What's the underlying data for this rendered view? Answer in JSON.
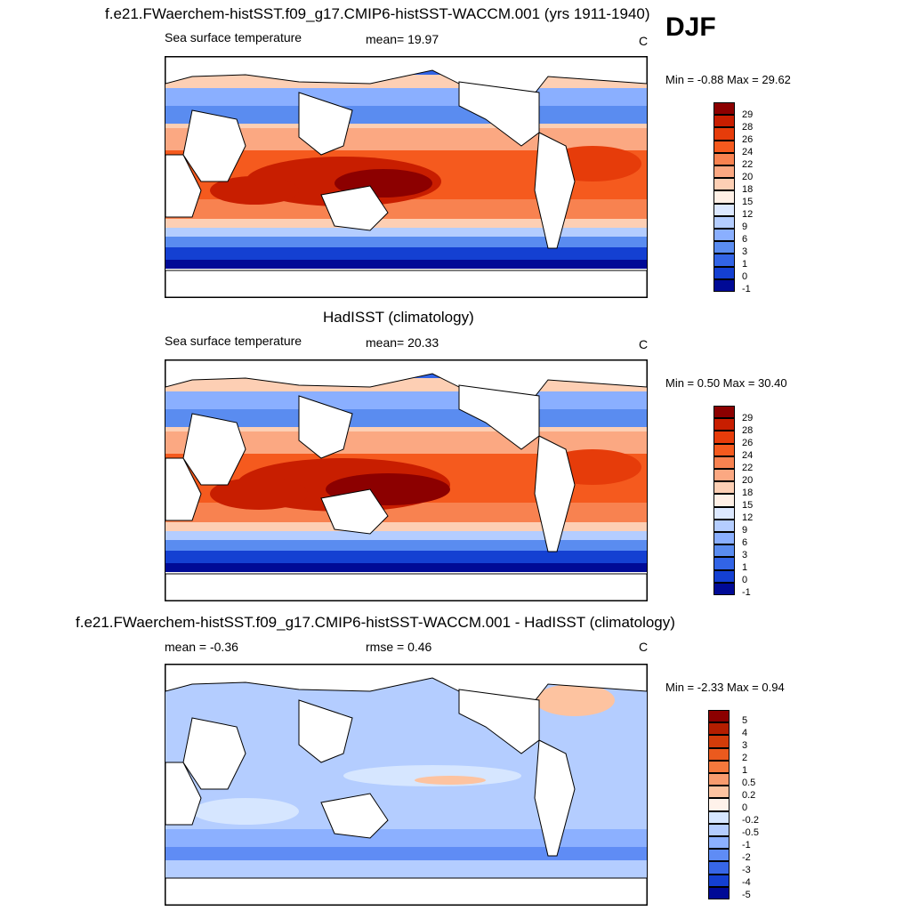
{
  "panels": [
    {
      "title": "f.e21.FWaerchem-histSST.f09_g17.CMIP6-histSST-WACCM.001 (yrs 1911-1940)",
      "left": "Sea surface temperature",
      "center": "mean=  19.97",
      "units": "C",
      "minmax": "Min =  -0.88 Max =  29.62",
      "palette": "sst",
      "levels": [
        "29",
        "28",
        "26",
        "24",
        "22",
        "20",
        "18",
        "15",
        "12",
        "9",
        "6",
        "3",
        "1",
        "0",
        "-1"
      ]
    },
    {
      "title": "HadISST (climatology)",
      "left": "Sea surface temperature",
      "center": "mean=  20.33",
      "units": "C",
      "minmax": "Min =   0.50 Max =  30.40",
      "palette": "sst",
      "levels": [
        "29",
        "28",
        "26",
        "24",
        "22",
        "20",
        "18",
        "15",
        "12",
        "9",
        "6",
        "3",
        "1",
        "0",
        "-1"
      ]
    },
    {
      "title": "f.e21.FWaerchem-histSST.f09_g17.CMIP6-histSST-WACCM.001 - HadISST (climatology)",
      "left": "mean =  -0.36",
      "center": "rmse =   0.46",
      "units": "C",
      "minmax": "Min =  -2.33 Max =   0.94",
      "palette": "diff",
      "levels": [
        "5",
        "4",
        "3",
        "2",
        "1",
        "0.5",
        "0.2",
        "0",
        "-0.2",
        "-0.5",
        "-1",
        "-2",
        "-3",
        "-4",
        "-5"
      ]
    }
  ],
  "season": "DJF",
  "colors": {
    "sst": [
      "#8c0000",
      "#c81e00",
      "#e63c0a",
      "#f55a1e",
      "#f88250",
      "#fba882",
      "#fdcfb4",
      "#fff0e6",
      "#dce8ff",
      "#b4cdff",
      "#8aafff",
      "#5a8cf0",
      "#3264e6",
      "#1440d2",
      "#000a96"
    ],
    "diff": [
      "#8c0000",
      "#b41e00",
      "#d23c0a",
      "#eb5a1e",
      "#f5783c",
      "#f89b6e",
      "#fdc3a0",
      "#fff2ea",
      "#d6e6ff",
      "#b4cdff",
      "#8cb0ff",
      "#5f8cf5",
      "#3766e6",
      "#1440d2",
      "#000a96"
    ]
  }
}
